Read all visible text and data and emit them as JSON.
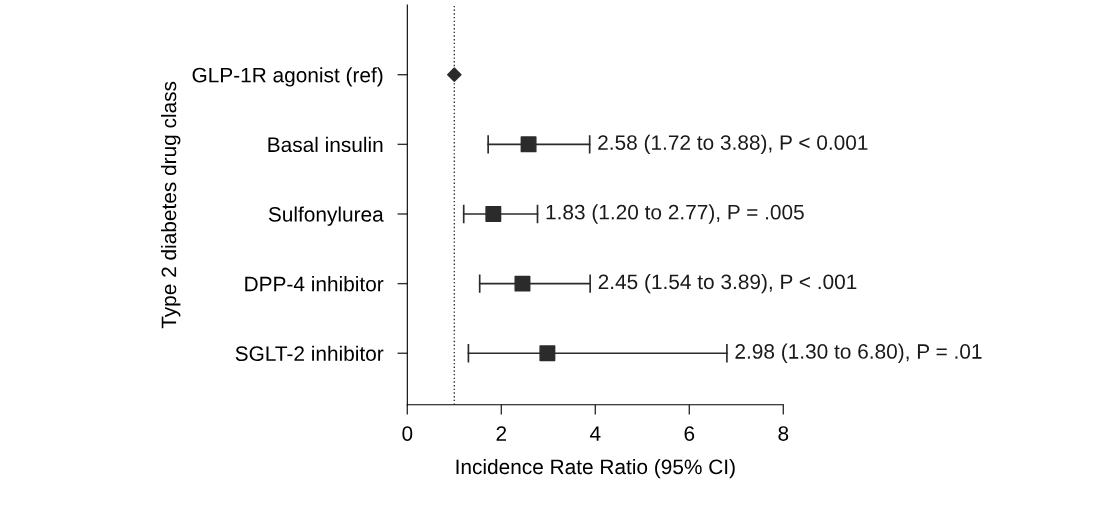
{
  "chart_data": {
    "type": "scatter",
    "orientation": "horizontal",
    "xlabel": "Incidence Rate Ratio (95% CI)",
    "ylabel": "Type 2 diabetes drug class",
    "categories": [
      "GLP-1R agonist (ref)",
      "Basal insulin",
      "Sulfonylurea",
      "DPP-4 inhibitor",
      "SGLT-2 inhibitor"
    ],
    "series": [
      {
        "color": "#2b2b2b",
        "marker": "diamond",
        "values": [
          1,
          null,
          null,
          null,
          null
        ]
      },
      {
        "color": "#2b2b2b",
        "marker": "square",
        "values": [
          null,
          2.58,
          1.83,
          2.45,
          2.98
        ],
        "errors": [
          null,
          [
            1.72,
            3.88
          ],
          [
            1.2,
            2.77
          ],
          [
            1.54,
            3.89
          ],
          [
            1.3,
            6.8
          ]
        ]
      }
    ],
    "annotations": [
      {
        "text": "2.58 (1.72 to 3.88), P < 0.001",
        "x": 3.88,
        "y": "Basal insulin"
      },
      {
        "text": "1.83 (1.20 to 2.77), P = .005",
        "x": 2.77,
        "y": "Sulfonylurea"
      },
      {
        "text": "2.45 (1.54 to 3.89), P < .001",
        "x": 3.89,
        "y": "DPP-4 inhibitor"
      },
      {
        "text": "2.98 (1.30 to 6.80), P = .01",
        "x": 6.8,
        "y": "SGLT-2 inhibitor"
      }
    ],
    "xlim": [
      0,
      8
    ],
    "xticks": [
      0,
      2,
      4,
      6,
      8
    ],
    "grid": false,
    "legend": false,
    "ref_lines": [
      {
        "axis": "x",
        "value": 1,
        "label": null,
        "color": "#333333",
        "line_style": "dotted"
      }
    ]
  }
}
